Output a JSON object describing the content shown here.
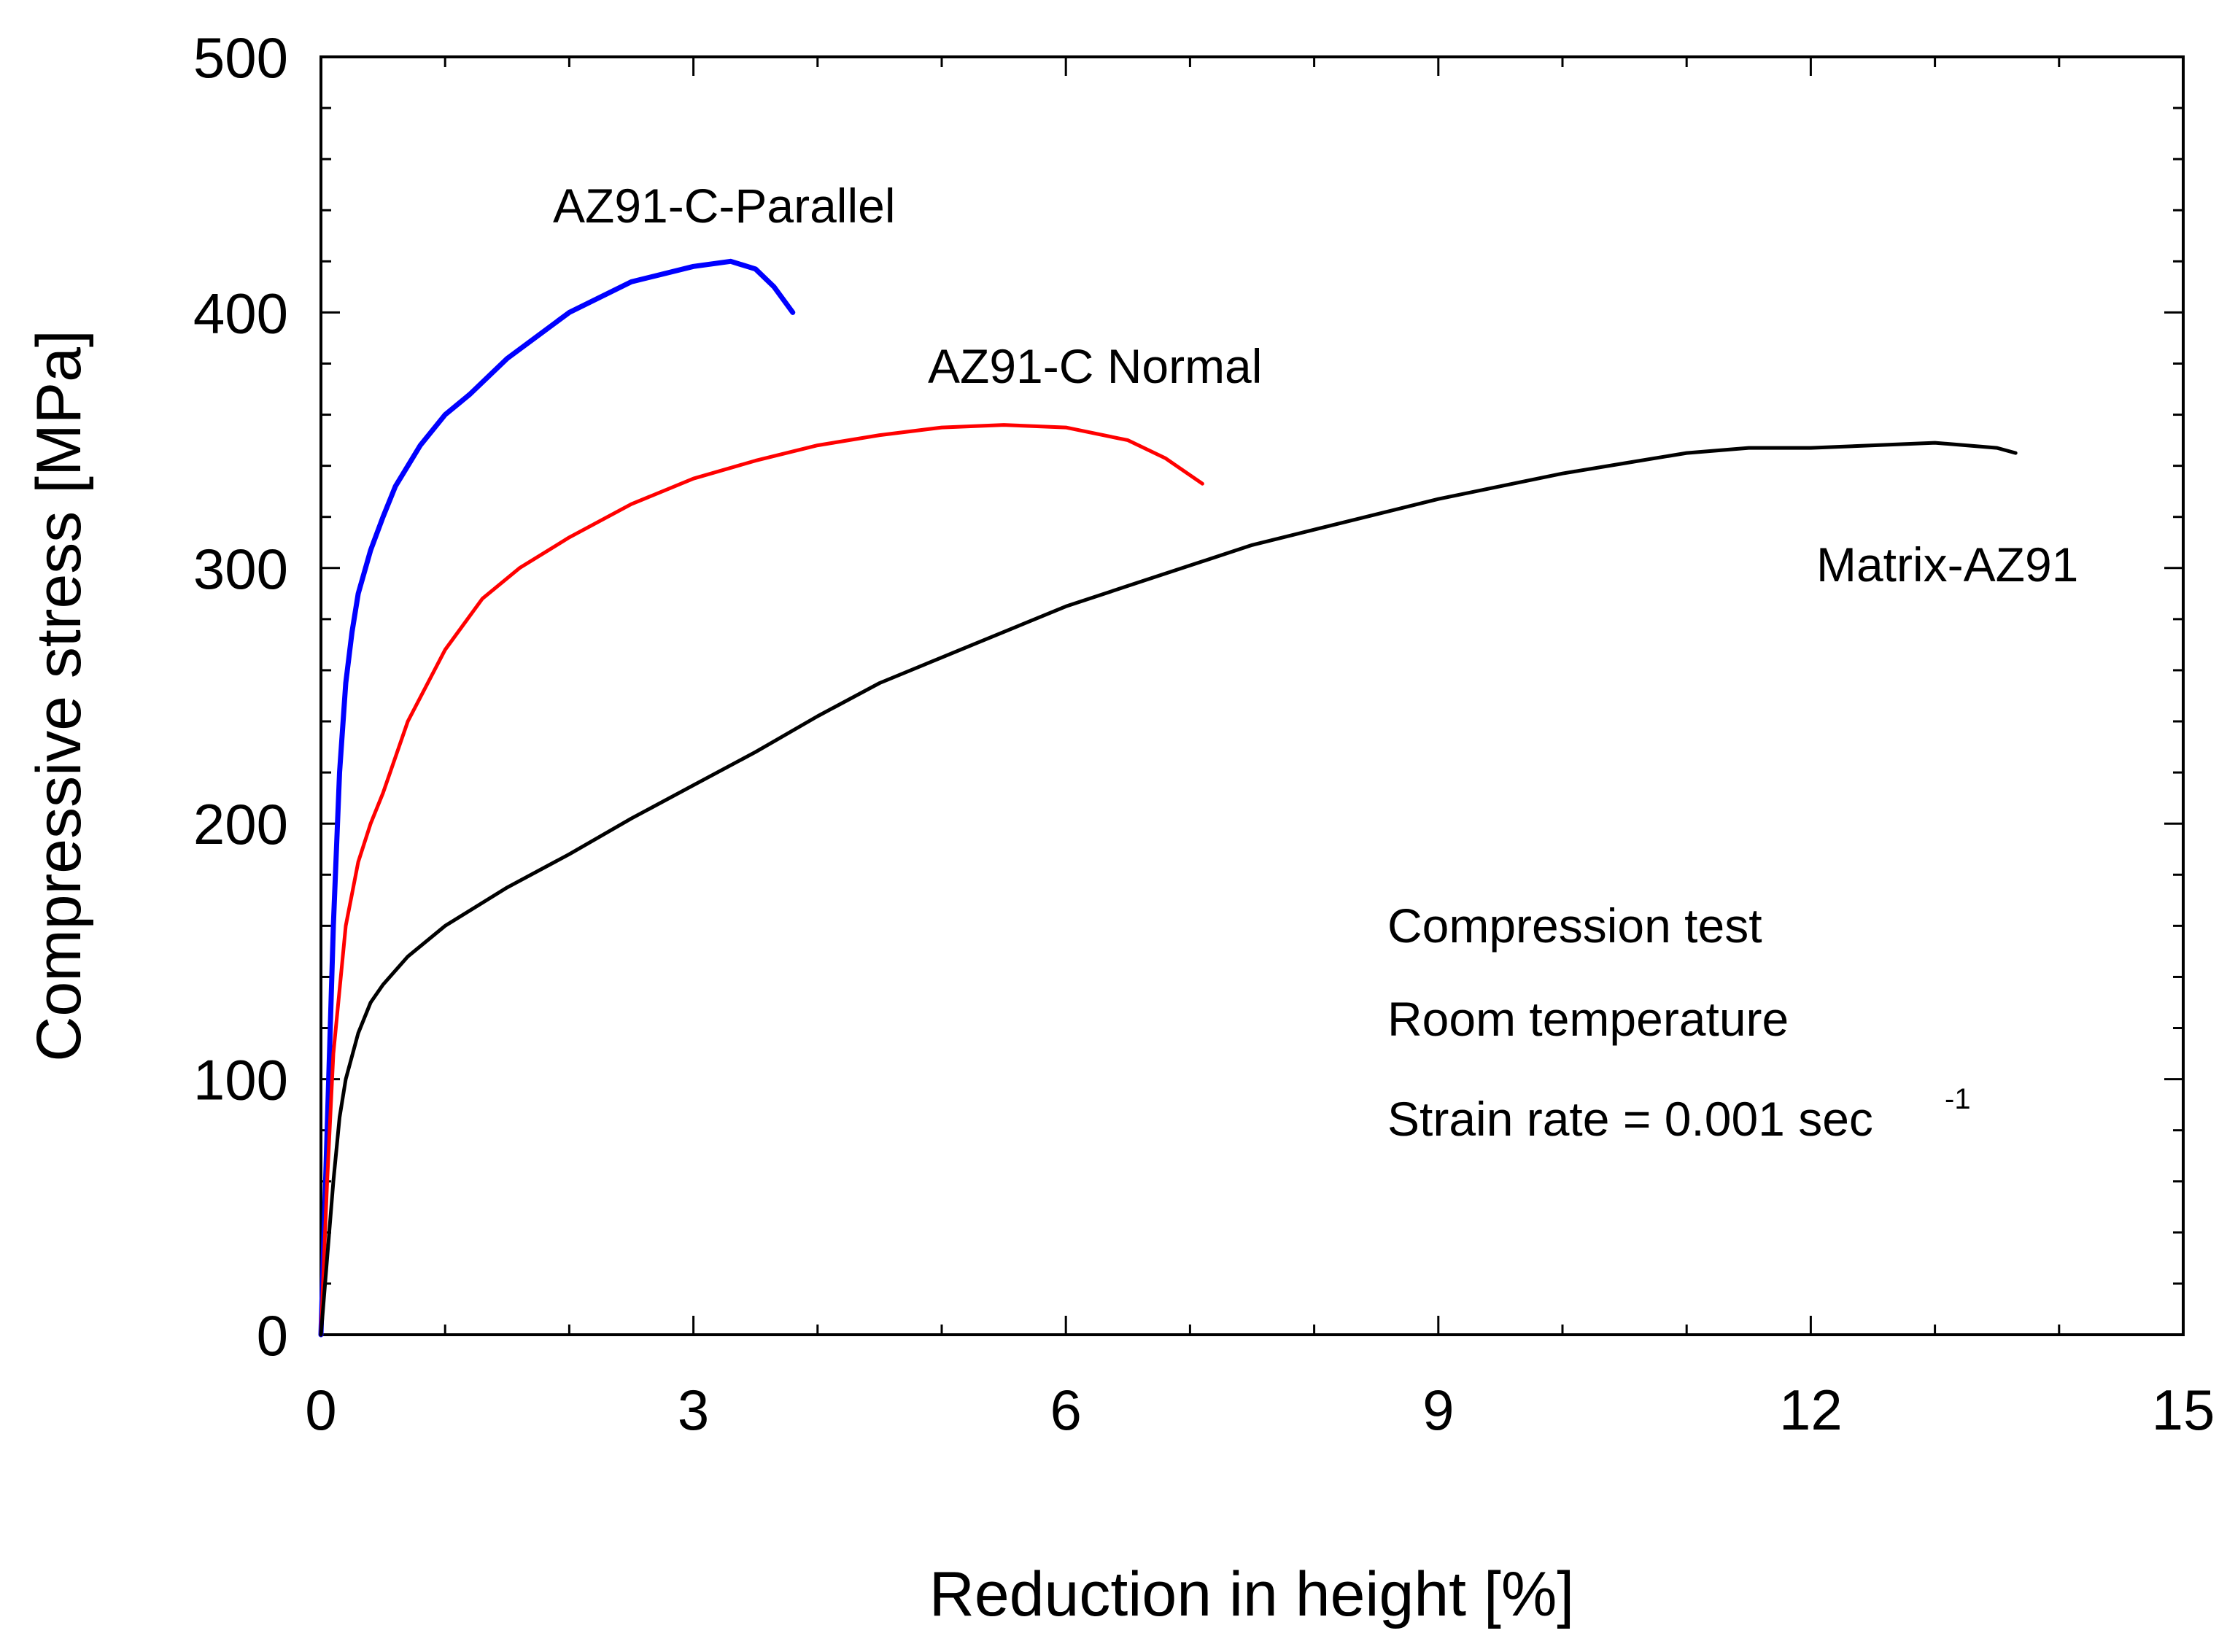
{
  "chart_data": {
    "type": "line",
    "title": "",
    "xlabel": "Reduction in height [%]",
    "ylabel": "Compressive stress [MPa]",
    "xlim": [
      0,
      15
    ],
    "ylim": [
      0,
      500
    ],
    "xticks": [
      0,
      3,
      6,
      9,
      12,
      15
    ],
    "yticks": [
      0,
      100,
      200,
      300,
      400,
      500
    ],
    "grid": false,
    "colors": {
      "parallel": "#0000ff",
      "normal": "#ff0000",
      "matrix": "#000000"
    },
    "series": [
      {
        "name": "AZ91-C-Parallel",
        "color": "#0000ff",
        "x": [
          0,
          0.05,
          0.1,
          0.15,
          0.2,
          0.25,
          0.3,
          0.4,
          0.5,
          0.6,
          0.8,
          1.0,
          1.2,
          1.5,
          2.0,
          2.5,
          3.0,
          3.3,
          3.5,
          3.65,
          3.8
        ],
        "y": [
          0,
          80,
          160,
          220,
          255,
          275,
          290,
          307,
          320,
          332,
          348,
          360,
          368,
          382,
          400,
          412,
          418,
          420,
          417,
          410,
          400
        ]
      },
      {
        "name": "AZ91-C Normal",
        "color": "#ff0000",
        "x": [
          0,
          0.05,
          0.1,
          0.2,
          0.3,
          0.4,
          0.5,
          0.7,
          1.0,
          1.3,
          1.6,
          2.0,
          2.5,
          3.0,
          3.5,
          4.0,
          4.5,
          5.0,
          5.5,
          6.0,
          6.5,
          6.8,
          7.1
        ],
        "y": [
          0,
          60,
          110,
          160,
          185,
          200,
          212,
          240,
          268,
          288,
          300,
          312,
          325,
          335,
          342,
          348,
          352,
          355,
          356,
          355,
          350,
          343,
          333
        ]
      },
      {
        "name": "Matrix-AZ91",
        "color": "#000000",
        "x": [
          0,
          0.05,
          0.1,
          0.15,
          0.2,
          0.3,
          0.4,
          0.5,
          0.7,
          1.0,
          1.5,
          2.0,
          2.5,
          3.0,
          3.5,
          4.0,
          4.5,
          5.0,
          5.5,
          6.0,
          6.5,
          7.0,
          7.5,
          8.0,
          8.5,
          9.0,
          9.5,
          10.0,
          10.5,
          11.0,
          11.5,
          12.0,
          12.5,
          13.0,
          13.5,
          13.65
        ],
        "y": [
          0,
          30,
          60,
          85,
          100,
          118,
          130,
          137,
          148,
          160,
          175,
          188,
          202,
          215,
          228,
          242,
          255,
          265,
          275,
          285,
          293,
          301,
          309,
          315,
          321,
          327,
          332,
          337,
          341,
          345,
          347,
          347,
          348,
          349,
          347,
          345
        ]
      }
    ],
    "series_labels": [
      "AZ91-C-Parallel",
      "AZ91-C Normal",
      "Matrix-AZ91"
    ],
    "annotations": [
      "Compression test",
      "Room temperature",
      "Strain rate = 0.001 sec",
      "-1"
    ]
  }
}
